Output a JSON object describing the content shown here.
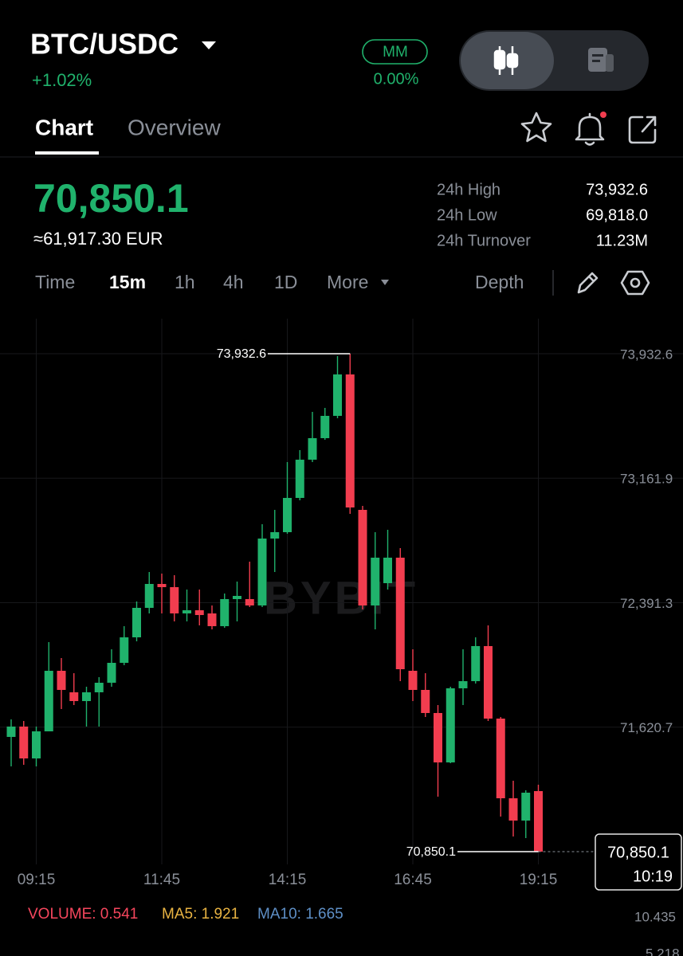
{
  "header": {
    "pair": "BTC/USDC",
    "change": "+1.02%",
    "badge": "MM",
    "badge_value": "0.00%"
  },
  "tabs": [
    "Chart",
    "Overview"
  ],
  "ticker": {
    "price": "70,850.1",
    "converted": "≈61,917.30 EUR",
    "stats": [
      {
        "label": "24h High",
        "value": "73,932.6"
      },
      {
        "label": "24h Low",
        "value": "69,818.0"
      },
      {
        "label": "24h Turnover",
        "value": "11.23M"
      }
    ]
  },
  "intervals": [
    "Time",
    "15m",
    "1h",
    "4h",
    "1D",
    "More"
  ],
  "depth": "Depth",
  "chart_data": {
    "type": "candlestick",
    "watermark": "BYBIT",
    "categories": [
      null,
      null,
      "09:15",
      null,
      null,
      null,
      null,
      null,
      null,
      null,
      null,
      null,
      "11:45",
      null,
      null,
      null,
      null,
      null,
      null,
      null,
      null,
      null,
      "14:15",
      null,
      null,
      null,
      null,
      null,
      null,
      null,
      null,
      null,
      "16:45",
      null,
      null,
      null,
      null,
      null,
      null,
      null,
      null,
      null,
      "19:15"
    ],
    "open": [
      71560.3,
      71624.4,
      71427.1,
      71594.8,
      71969.7,
      71836.5,
      71782.2,
      71836.5,
      71895.7,
      72019.0,
      72176.8,
      72359.3,
      72507.3,
      72487.5,
      72324.8,
      72344.5,
      72324.8,
      72245.9,
      72413.5,
      72413.5,
      72374.1,
      72788.4,
      72827.8,
      73039.9,
      73276.6,
      73409.8,
      73547.9,
      73804.4,
      72965.9,
      72374.1,
      72512.2,
      72670.0,
      71969.7,
      71851.3,
      71708.3,
      71402.5,
      71861.2,
      71905.5,
      72122.6,
      71673.7,
      71180.5,
      71042.4,
      71224.9
    ],
    "high": [
      71668.8,
      71658.9,
      71624.4,
      72147.2,
      72048.6,
      71954.9,
      71871.0,
      71930.2,
      72102.8,
      72245.9,
      72398.7,
      72581.2,
      72571.4,
      72561.5,
      72472.7,
      72472.7,
      72374.1,
      72448.1,
      72522.0,
      72645.3,
      72877.2,
      72965.9,
      73261.8,
      73335.8,
      73572.6,
      73597.2,
      73917.8,
      73932.6,
      72990.6,
      72827.8,
      72842.6,
      72729.2,
      72102.8,
      71954.9,
      71757.6,
      71871.0,
      72102.8,
      72176.8,
      72250.8,
      71683.6,
      71289.0,
      71229.9,
      71264.4
    ],
    "low": [
      71377.8,
      71387.7,
      71377.8,
      71594.8,
      71732.9,
      71757.6,
      71624.4,
      71624.4,
      71871.0,
      72004.2,
      72152.1,
      72324.8,
      72324.8,
      72275.4,
      72275.4,
      72250.8,
      72226.1,
      72236.0,
      72275.4,
      72364.2,
      72364.2,
      72581.2,
      72818.0,
      73025.1,
      73261.8,
      73399.9,
      73533.1,
      72941.3,
      72349.4,
      72226.1,
      72472.7,
      71905.5,
      71782.2,
      71683.6,
      71190.4,
      71397.6,
      71757.6,
      71890.8,
      71658.9,
      71067.1,
      70943.8,
      70933.9,
      70850.1
    ],
    "close": [
      71624.4,
      71427.1,
      71594.8,
      71969.7,
      71851.3,
      71782.2,
      71836.5,
      71895.7,
      72019.0,
      72176.8,
      72359.3,
      72507.3,
      72487.5,
      72324.8,
      72344.5,
      72314.9,
      72245.9,
      72413.5,
      72433.3,
      72374.1,
      72788.4,
      72827.8,
      73039.9,
      73276.6,
      73409.8,
      73547.9,
      73804.4,
      72980.7,
      72374.1,
      72670.0,
      72670.0,
      71979.5,
      71851.3,
      71708.3,
      71402.5,
      71861.2,
      71905.5,
      72122.6,
      71673.7,
      71180.5,
      71042.4,
      71215.1,
      70850.1
    ],
    "up_color": "#20b26c",
    "down_color": "#f23d4f",
    "ylim": [
      70771.2,
      74149.6
    ],
    "yticks": [
      {
        "value": 73932.6,
        "label": "73,932.6"
      },
      {
        "value": 73161.9,
        "label": "73,161.9"
      },
      {
        "value": 72391.3,
        "label": "72,391.3"
      },
      {
        "value": 71620.7,
        "label": "71,620.7"
      }
    ],
    "grid": true,
    "max_marker": {
      "value": 73932.6,
      "label": "73,932.6"
    },
    "min_marker": {
      "value": 70850.1,
      "label": "70,850.1"
    },
    "last_price": {
      "value": 70850.1,
      "label": "70,850.1"
    },
    "countdown": "10:19"
  },
  "volume": {
    "legend": [
      "VOLUME: 0.541",
      "MA5: 1.921",
      "MA10: 1.665"
    ],
    "axis": [
      "10.435",
      "5.218"
    ]
  }
}
